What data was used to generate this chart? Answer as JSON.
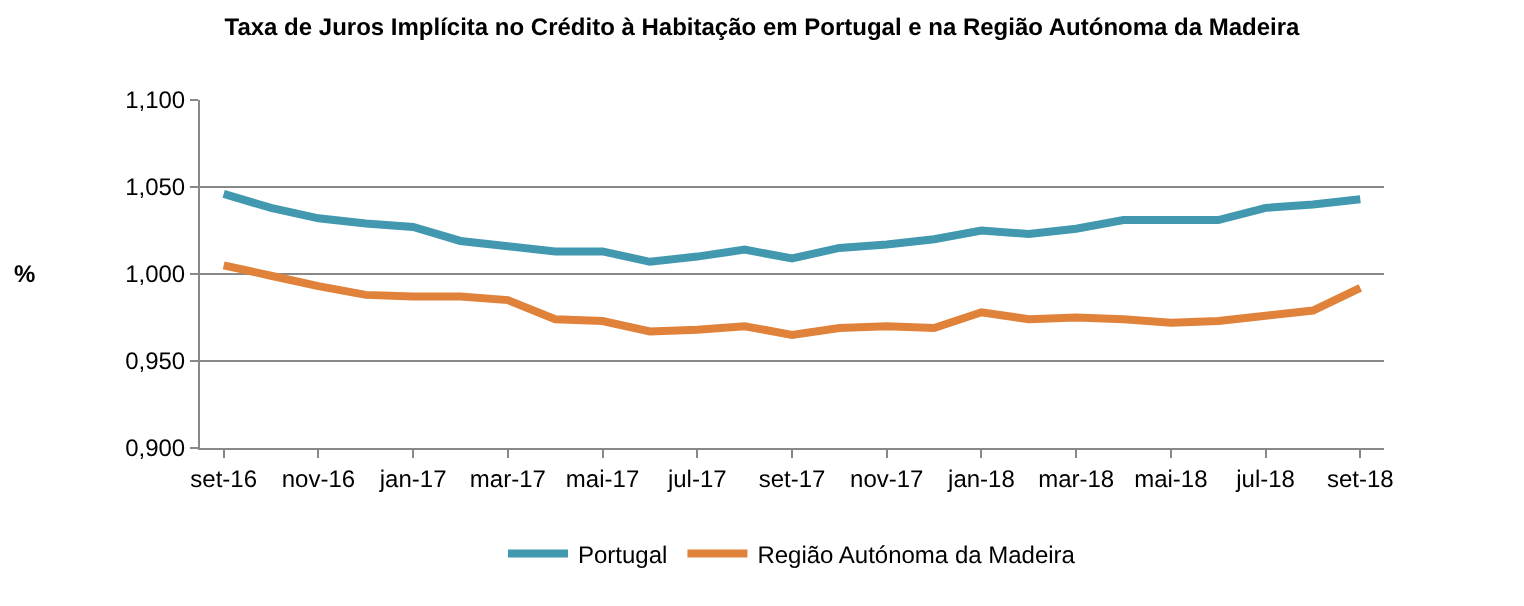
{
  "chart_data": {
    "type": "line",
    "title": "Taxa de Juros Implícita no Crédito à Habitação em Portugal e na Região Autónoma da Madeira",
    "ylabel": "%",
    "categories": [
      "set-16",
      null,
      "nov-16",
      null,
      "jan-17",
      null,
      "mar-17",
      null,
      "mai-17",
      null,
      "jul-17",
      null,
      "set-17",
      null,
      "nov-17",
      null,
      "jan-18",
      null,
      "mar-18",
      null,
      "mai-18",
      null,
      "jul-18",
      null,
      "set-18"
    ],
    "series": [
      {
        "name": "Portugal",
        "color": "#4198af",
        "values": [
          1.046,
          1.038,
          1.032,
          1.029,
          1.027,
          1.019,
          1.016,
          1.013,
          1.013,
          1.007,
          1.01,
          1.014,
          1.009,
          1.015,
          1.017,
          1.02,
          1.025,
          1.023,
          1.026,
          1.031,
          1.031,
          1.031,
          1.038,
          1.04,
          1.043
        ]
      },
      {
        "name": "Região Autónoma da Madeira",
        "color": "#e0823a",
        "values": [
          1.005,
          0.999,
          0.993,
          0.988,
          0.987,
          0.987,
          0.985,
          0.974,
          0.973,
          0.967,
          0.968,
          0.97,
          0.965,
          0.969,
          0.97,
          0.969,
          0.978,
          0.974,
          0.975,
          0.974,
          0.972,
          0.973,
          0.976,
          0.979,
          0.992
        ]
      }
    ],
    "ylim": [
      0.9,
      1.1
    ],
    "yticks": [
      {
        "value": 0.9,
        "label": "0,900"
      },
      {
        "value": 0.95,
        "label": "0,950"
      },
      {
        "value": 1.0,
        "label": "1,000"
      },
      {
        "value": 1.05,
        "label": "1,050"
      },
      {
        "value": 1.1,
        "label": "1,100"
      }
    ],
    "grid": "y",
    "legend": "bottom",
    "marker": "none",
    "line_style": "solid"
  }
}
